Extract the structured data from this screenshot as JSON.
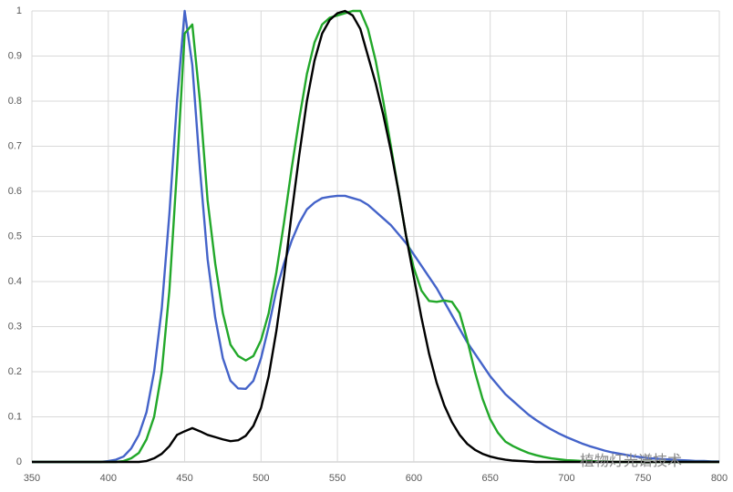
{
  "chart_data": {
    "type": "line",
    "x": [
      350,
      355,
      360,
      365,
      370,
      375,
      380,
      385,
      390,
      395,
      400,
      405,
      410,
      415,
      420,
      425,
      430,
      435,
      440,
      445,
      450,
      455,
      460,
      465,
      470,
      475,
      480,
      485,
      490,
      495,
      500,
      505,
      510,
      515,
      520,
      525,
      530,
      535,
      540,
      545,
      550,
      555,
      560,
      565,
      570,
      575,
      580,
      585,
      590,
      595,
      600,
      605,
      610,
      615,
      620,
      625,
      630,
      635,
      640,
      645,
      650,
      655,
      660,
      665,
      670,
      675,
      680,
      685,
      690,
      695,
      700,
      705,
      710,
      715,
      720,
      725,
      730,
      735,
      740,
      745,
      750,
      755,
      760,
      765,
      770,
      775,
      780,
      785,
      790,
      795,
      800
    ],
    "series": [
      {
        "color": "#4463c9",
        "values": [
          0,
          0,
          0,
          0,
          0,
          0,
          0,
          0,
          0,
          0,
          0.002,
          0.005,
          0.012,
          0.03,
          0.06,
          0.11,
          0.2,
          0.34,
          0.55,
          0.8,
          1.0,
          0.88,
          0.65,
          0.45,
          0.32,
          0.23,
          0.18,
          0.163,
          0.162,
          0.18,
          0.23,
          0.3,
          0.38,
          0.44,
          0.49,
          0.53,
          0.56,
          0.575,
          0.585,
          0.588,
          0.59,
          0.59,
          0.585,
          0.58,
          0.57,
          0.555,
          0.54,
          0.525,
          0.505,
          0.485,
          0.46,
          0.435,
          0.41,
          0.385,
          0.355,
          0.325,
          0.295,
          0.265,
          0.24,
          0.215,
          0.19,
          0.17,
          0.15,
          0.135,
          0.12,
          0.105,
          0.093,
          0.082,
          0.072,
          0.063,
          0.055,
          0.048,
          0.041,
          0.035,
          0.03,
          0.025,
          0.021,
          0.018,
          0.015,
          0.012,
          0.01,
          0.008,
          0.007,
          0.006,
          0.005,
          0.004,
          0.003,
          0.002,
          0.002,
          0.001,
          0.001
        ]
      },
      {
        "color": "#22a82a",
        "values": [
          0,
          0,
          0,
          0,
          0,
          0,
          0,
          0,
          0,
          0,
          0,
          0,
          0.002,
          0.008,
          0.02,
          0.05,
          0.1,
          0.2,
          0.38,
          0.65,
          0.95,
          0.97,
          0.8,
          0.58,
          0.44,
          0.33,
          0.26,
          0.235,
          0.225,
          0.235,
          0.27,
          0.33,
          0.42,
          0.53,
          0.65,
          0.76,
          0.86,
          0.93,
          0.97,
          0.985,
          0.99,
          0.995,
          1,
          1,
          0.96,
          0.89,
          0.8,
          0.7,
          0.6,
          0.5,
          0.43,
          0.38,
          0.357,
          0.355,
          0.358,
          0.355,
          0.33,
          0.27,
          0.2,
          0.14,
          0.095,
          0.065,
          0.045,
          0.035,
          0.027,
          0.02,
          0.015,
          0.011,
          0.008,
          0.006,
          0.004,
          0.003,
          0.002,
          0.002,
          0.001,
          0.001,
          0,
          0,
          0,
          0,
          0,
          0,
          0,
          0,
          0,
          0,
          0,
          0,
          0,
          0,
          0
        ]
      },
      {
        "color": "#000000",
        "values": [
          0,
          0,
          0,
          0,
          0,
          0,
          0,
          0,
          0,
          0,
          0,
          0,
          0,
          0,
          0,
          0.002,
          0.008,
          0.018,
          0.035,
          0.06,
          0.068,
          0.075,
          0.068,
          0.06,
          0.055,
          0.05,
          0.046,
          0.048,
          0.058,
          0.08,
          0.12,
          0.19,
          0.29,
          0.41,
          0.55,
          0.68,
          0.8,
          0.89,
          0.95,
          0.98,
          0.995,
          1,
          0.99,
          0.96,
          0.9,
          0.84,
          0.77,
          0.69,
          0.6,
          0.5,
          0.41,
          0.32,
          0.24,
          0.175,
          0.125,
          0.088,
          0.06,
          0.04,
          0.027,
          0.018,
          0.012,
          0.008,
          0.005,
          0.003,
          0.002,
          0.001,
          0,
          0,
          0,
          0,
          0,
          0,
          0,
          0,
          0,
          0,
          0,
          0,
          0,
          0,
          0,
          0,
          0,
          0,
          0,
          0,
          0,
          0,
          0,
          0,
          0
        ]
      }
    ],
    "xlim": [
      350,
      800
    ],
    "xticks": [
      350,
      400,
      450,
      500,
      550,
      600,
      650,
      700,
      750,
      800
    ],
    "ylim": [
      0,
      1
    ],
    "yticks": [
      0,
      0.1,
      0.2,
      0.3,
      0.4,
      0.5,
      0.6,
      0.7,
      0.8,
      0.9,
      1
    ],
    "grid": true,
    "annotation": "植物灯光谱技术"
  }
}
